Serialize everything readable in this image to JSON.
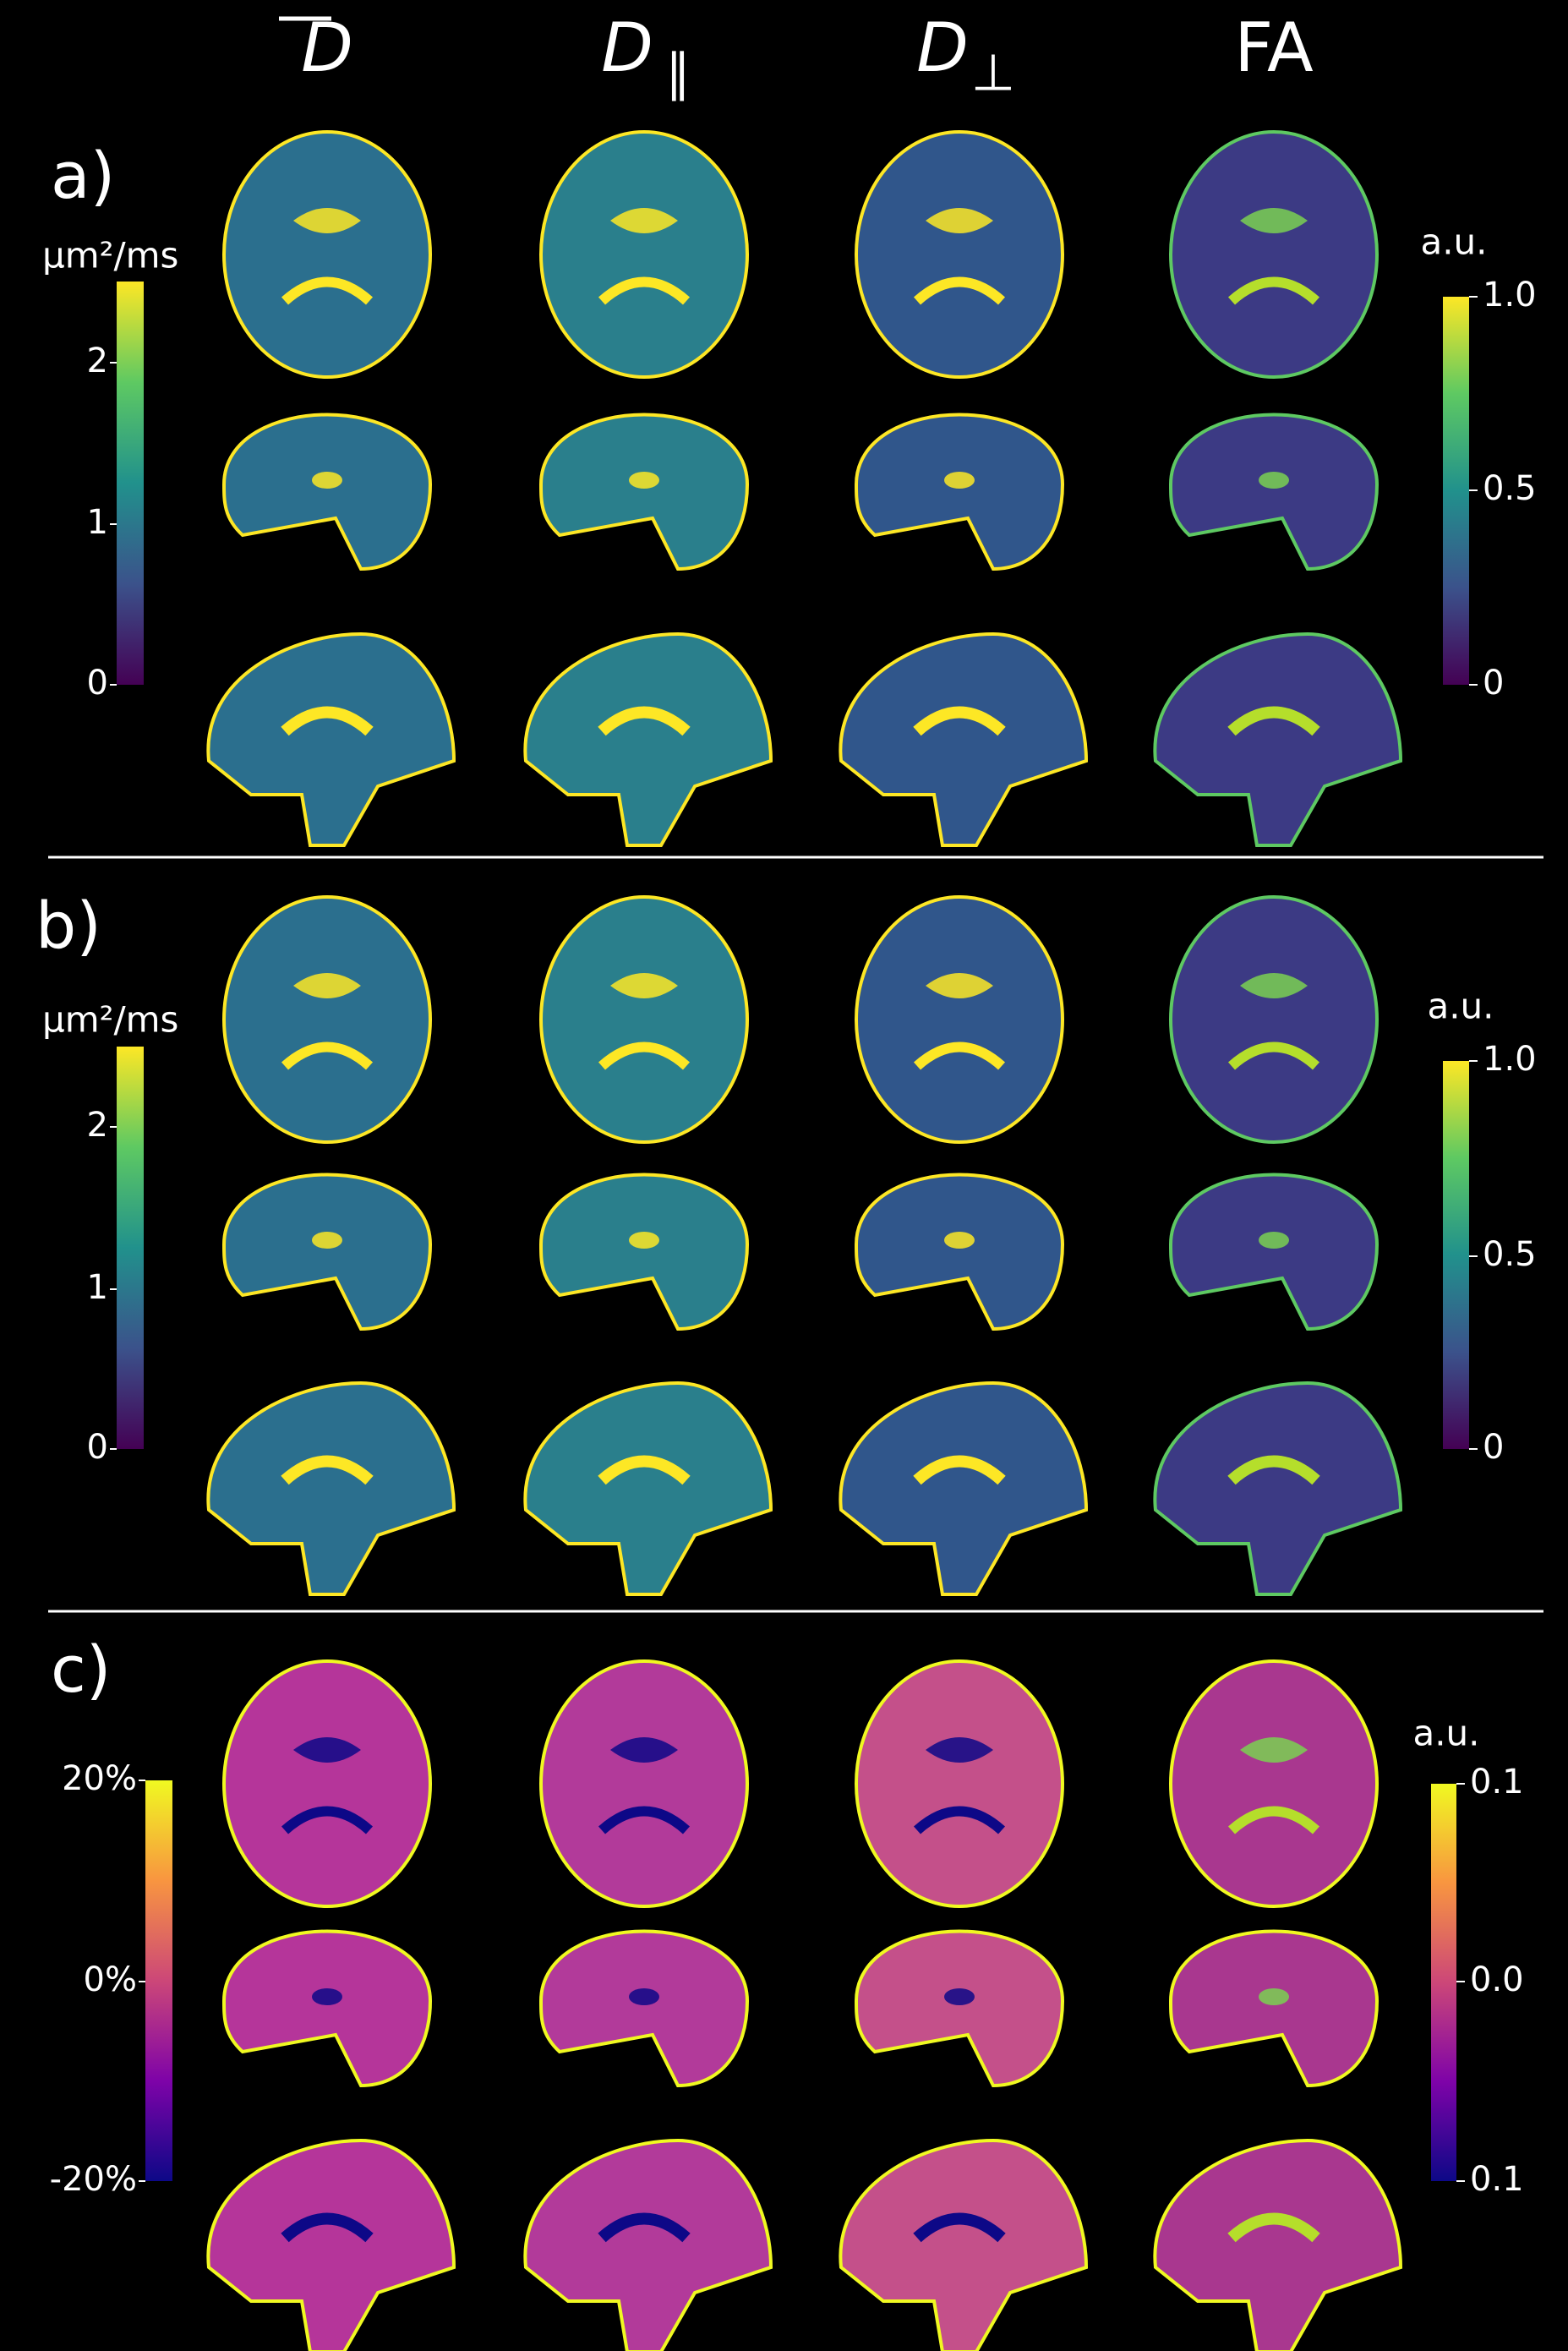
{
  "columns": [
    {
      "text": "D"
    },
    {
      "text": "D",
      "sub": "∥"
    },
    {
      "text": "D",
      "sub": "⊥"
    },
    {
      "text": "FA"
    }
  ],
  "panels": [
    {
      "label": "a)",
      "left_scale": {
        "unit": "μm²/ms",
        "ticks": [
          "2",
          "1",
          "0"
        ]
      },
      "right_scale": {
        "unit": "a.u.",
        "ticks": [
          "1.0",
          "0.5",
          "0"
        ]
      }
    },
    {
      "label": "b)",
      "left_scale": {
        "unit": "μm²/ms",
        "ticks": [
          "2",
          "1",
          "0"
        ]
      },
      "right_scale": {
        "unit": "a.u.",
        "ticks": [
          "1.0",
          "0.5",
          "0"
        ]
      }
    },
    {
      "label": "c)",
      "left_scale": {
        "ticks": [
          "20%",
          "0%",
          "-20%"
        ]
      },
      "right_scale": {
        "unit": "a.u.",
        "ticks": [
          "0.1",
          "0.0",
          "0.1"
        ]
      }
    }
  ]
}
